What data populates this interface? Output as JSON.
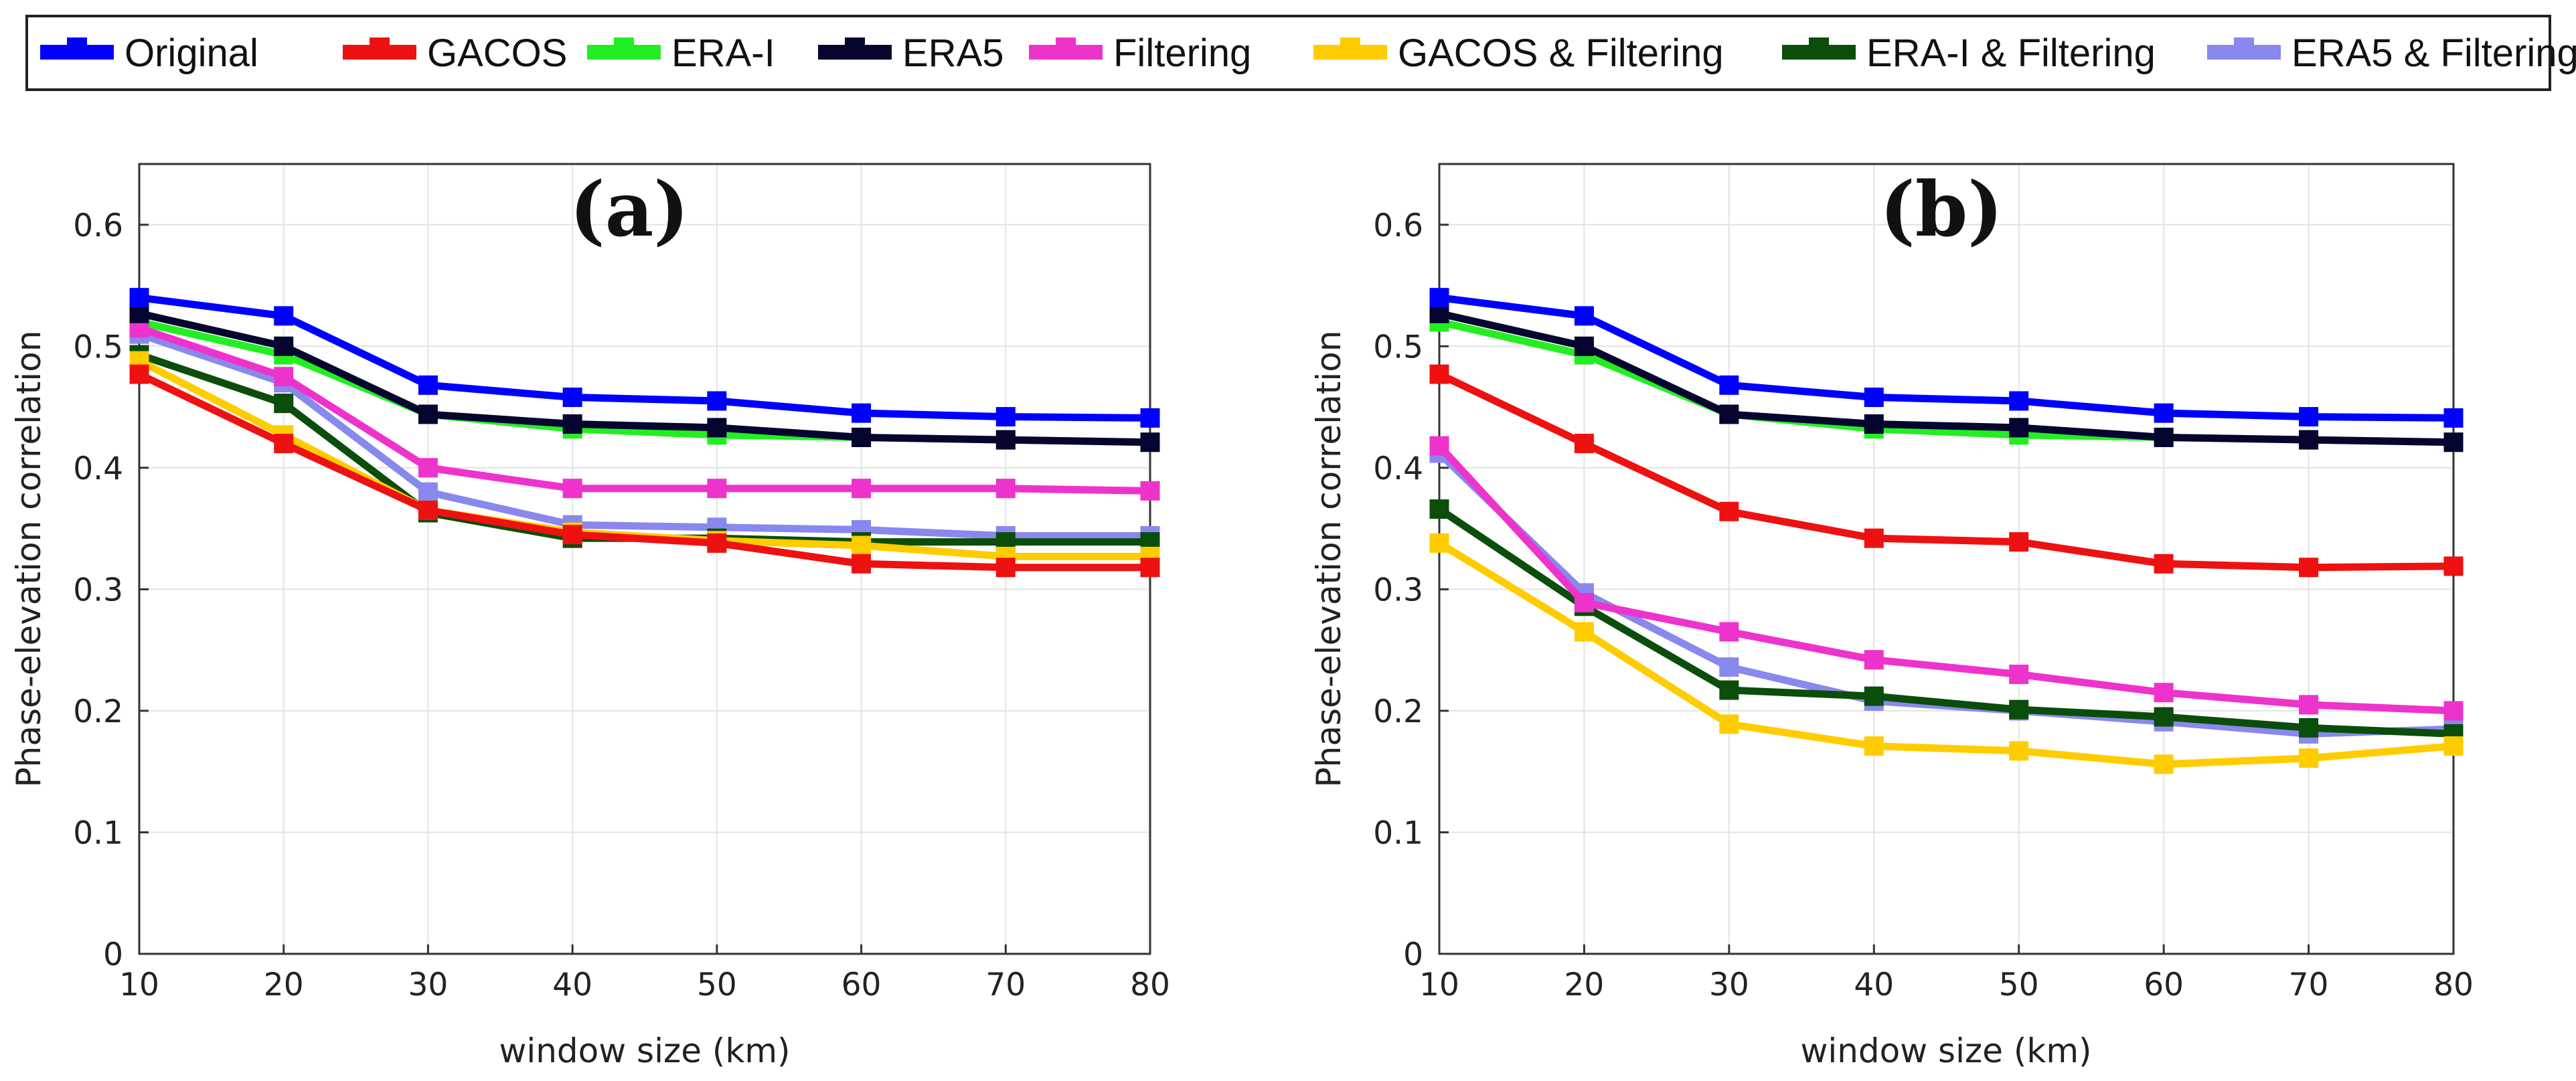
{
  "legend": [
    {
      "name": "Original",
      "color": "#0000ff"
    },
    {
      "name": "GACOS",
      "color": "#ee1111"
    },
    {
      "name": "ERA-I",
      "color": "#22ee22"
    },
    {
      "name": "ERA5",
      "color": "#050530"
    },
    {
      "name": "Filtering",
      "color": "#ee33cc"
    },
    {
      "name": "GACOS & Filtering",
      "color": "#ffcc00"
    },
    {
      "name": "ERA-I & Filtering",
      "color": "#0b4d0b"
    },
    {
      "name": "ERA5 & Filtering",
      "color": "#8888ee"
    }
  ],
  "chart_data": [
    {
      "type": "line",
      "title": "(a)",
      "xlabel": "window size (km)",
      "ylabel": "Phase-elevation correlation",
      "x": [
        10,
        20,
        30,
        40,
        50,
        60,
        70,
        80
      ],
      "xlim": [
        10,
        80
      ],
      "ylim": [
        0,
        0.65
      ],
      "xticks": [
        "10",
        "20",
        "30",
        "40",
        "50",
        "60",
        "70",
        "80"
      ],
      "yticks": [
        "0",
        "0.1",
        "0.2",
        "0.3",
        "0.4",
        "0.5",
        "0.6"
      ],
      "grid": true,
      "series": [
        {
          "name": "Original",
          "values": [
            0.54,
            0.525,
            0.468,
            0.458,
            0.455,
            0.445,
            0.442,
            0.441
          ]
        },
        {
          "name": "GACOS",
          "values": [
            0.477,
            0.42,
            0.365,
            0.345,
            0.338,
            0.321,
            0.318,
            0.318
          ]
        },
        {
          "name": "ERA-I",
          "values": [
            0.52,
            0.493,
            0.444,
            0.432,
            0.427,
            0.425,
            0.423,
            0.421
          ]
        },
        {
          "name": "ERA5",
          "values": [
            0.527,
            0.5,
            0.444,
            0.436,
            0.433,
            0.425,
            0.423,
            0.421
          ]
        },
        {
          "name": "Filtering",
          "values": [
            0.515,
            0.475,
            0.4,
            0.383,
            0.383,
            0.383,
            0.383,
            0.381
          ]
        },
        {
          "name": "GACOS & Filtering",
          "values": [
            0.488,
            0.427,
            0.365,
            0.347,
            0.34,
            0.336,
            0.327,
            0.327
          ]
        },
        {
          "name": "ERA-I & Filtering",
          "values": [
            0.493,
            0.453,
            0.363,
            0.342,
            0.342,
            0.339,
            0.339,
            0.339
          ]
        },
        {
          "name": "ERA5 & Filtering",
          "values": [
            0.51,
            0.47,
            0.38,
            0.353,
            0.351,
            0.349,
            0.344,
            0.344
          ]
        }
      ]
    },
    {
      "type": "line",
      "title": "(b)",
      "xlabel": "window size (km)",
      "ylabel": "Phase-elevation correlation",
      "x": [
        10,
        20,
        30,
        40,
        50,
        60,
        70,
        80
      ],
      "xlim": [
        10,
        80
      ],
      "ylim": [
        0,
        0.65
      ],
      "xticks": [
        "10",
        "20",
        "30",
        "40",
        "50",
        "60",
        "70",
        "80"
      ],
      "yticks": [
        "0",
        "0.1",
        "0.2",
        "0.3",
        "0.4",
        "0.5",
        "0.6"
      ],
      "grid": true,
      "series": [
        {
          "name": "Original",
          "values": [
            0.54,
            0.525,
            0.468,
            0.458,
            0.455,
            0.445,
            0.442,
            0.441
          ]
        },
        {
          "name": "GACOS",
          "values": [
            0.477,
            0.42,
            0.364,
            0.342,
            0.339,
            0.321,
            0.318,
            0.319
          ]
        },
        {
          "name": "ERA-I",
          "values": [
            0.52,
            0.493,
            0.444,
            0.432,
            0.427,
            0.425,
            0.423,
            0.421
          ]
        },
        {
          "name": "ERA5",
          "values": [
            0.527,
            0.5,
            0.444,
            0.436,
            0.433,
            0.425,
            0.423,
            0.421
          ]
        },
        {
          "name": "Filtering",
          "values": [
            0.418,
            0.289,
            0.265,
            0.242,
            0.23,
            0.215,
            0.205,
            0.2
          ]
        },
        {
          "name": "GACOS & Filtering",
          "values": [
            0.338,
            0.265,
            0.189,
            0.171,
            0.167,
            0.156,
            0.161,
            0.171
          ]
        },
        {
          "name": "ERA-I & Filtering",
          "values": [
            0.366,
            0.286,
            0.217,
            0.212,
            0.201,
            0.195,
            0.186,
            0.181
          ]
        },
        {
          "name": "ERA5 & Filtering",
          "values": [
            0.412,
            0.297,
            0.236,
            0.208,
            0.2,
            0.191,
            0.181,
            0.185
          ]
        }
      ]
    }
  ]
}
